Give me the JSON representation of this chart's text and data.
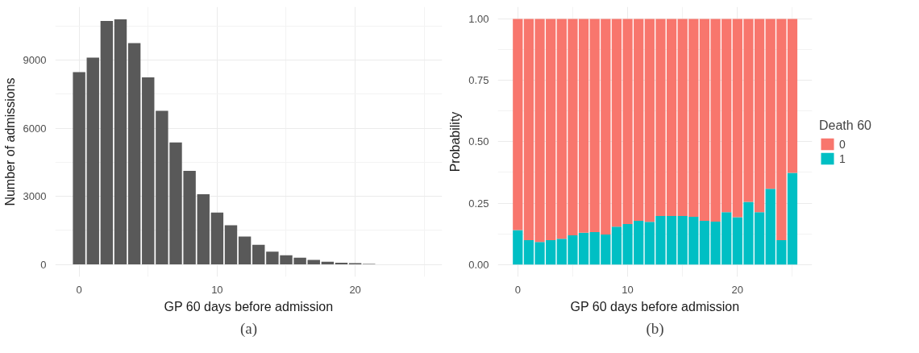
{
  "chart_data": [
    {
      "type": "bar",
      "xlabel": "GP 60 days before admission",
      "ylabel": "Number of admissions",
      "annotations": [
        "(a)"
      ],
      "x": [
        0,
        1,
        2,
        3,
        4,
        5,
        6,
        7,
        8,
        9,
        10,
        11,
        12,
        13,
        14,
        15,
        16,
        17,
        18,
        19,
        20,
        21
      ],
      "series": [
        {
          "color": "#595959",
          "values": [
            8470,
            9110,
            10730,
            10800,
            9750,
            8240,
            6770,
            5370,
            4120,
            3090,
            2280,
            1720,
            1230,
            860,
            560,
            400,
            290,
            200,
            120,
            70,
            50,
            20
          ]
        }
      ],
      "xlim": [
        -1.73,
        26.3
      ],
      "ylim": [
        -550,
        11350
      ],
      "xticks": [
        0,
        10,
        20
      ],
      "yticks": [
        0,
        3000,
        6000,
        9000
      ],
      "grid": true
    },
    {
      "type": "bar",
      "stacked": true,
      "xlabel": "GP 60 days before admission",
      "ylabel": "Probability",
      "legend_title": "Death 60",
      "annotations": [
        "(b)"
      ],
      "x": [
        0,
        1,
        2,
        3,
        4,
        5,
        6,
        7,
        8,
        9,
        10,
        11,
        12,
        13,
        14,
        15,
        16,
        17,
        18,
        19,
        20,
        21,
        22,
        23,
        24,
        25
      ],
      "series": [
        {
          "name": "1",
          "color": "#00bfc4",
          "values": [
            0.14,
            0.099,
            0.092,
            0.099,
            0.105,
            0.119,
            0.13,
            0.132,
            0.122,
            0.154,
            0.165,
            0.178,
            0.174,
            0.198,
            0.198,
            0.198,
            0.194,
            0.178,
            0.175,
            0.213,
            0.193,
            0.255,
            0.213,
            0.308,
            0.099,
            0.373
          ]
        },
        {
          "name": "0",
          "color": "#f8766d",
          "values": [
            0.86,
            0.901,
            0.908,
            0.901,
            0.895,
            0.881,
            0.87,
            0.868,
            0.878,
            0.846,
            0.835,
            0.822,
            0.826,
            0.802,
            0.802,
            0.802,
            0.806,
            0.822,
            0.825,
            0.787,
            0.807,
            0.745,
            0.787,
            0.692,
            0.901,
            0.627
          ]
        }
      ],
      "xlim": [
        -1.82,
        26.8
      ],
      "ylim": [
        -0.05,
        1.049
      ],
      "xticks": [
        0,
        10,
        20
      ],
      "yticks": [
        {
          "value": 0,
          "label": "0.00"
        },
        {
          "value": 0.25,
          "label": "0.25"
        },
        {
          "value": 0.5,
          "label": "0.50"
        },
        {
          "value": 0.75,
          "label": "0.75"
        },
        {
          "value": 1,
          "label": "1.00"
        }
      ],
      "grid": true,
      "legend": "right"
    }
  ]
}
